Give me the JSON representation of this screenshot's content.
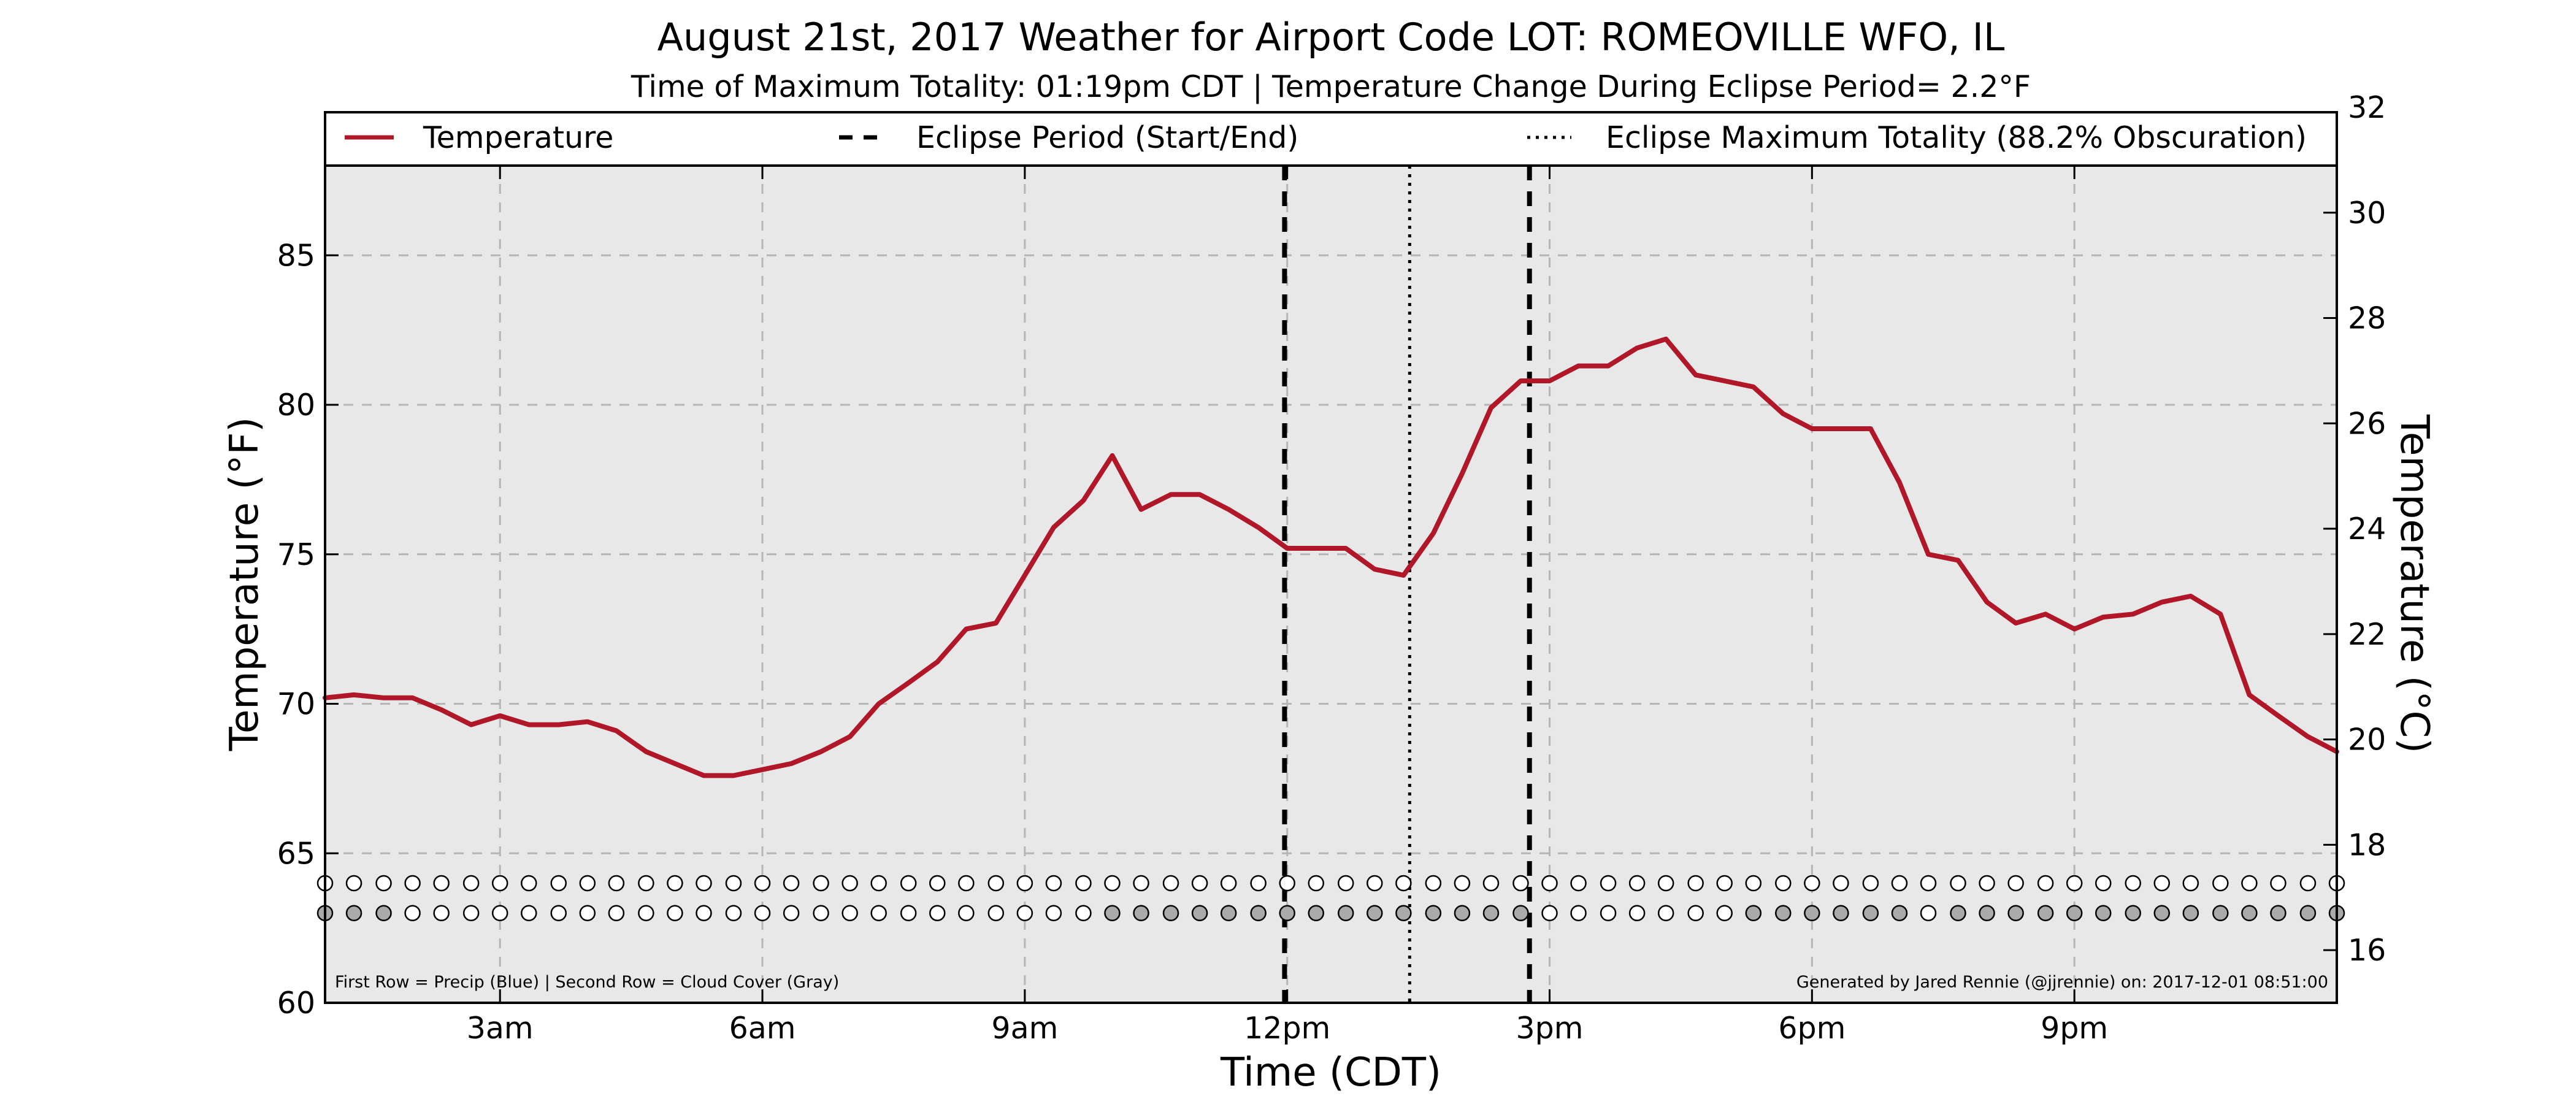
{
  "chart_data": {
    "type": "line",
    "title": "August 21st, 2017 Weather for Airport Code LOT: ROMEOVILLE WFO, IL",
    "subtitle": "Time of Maximum Totality: 01:19pm CDT | Temperature Change During Eclipse Period= 2.2°F",
    "xlabel": "Time (CDT)",
    "ylabel": "Temperature (°F)",
    "y2label": "Temperature (°C)",
    "xlim": [
      1.0,
      24.0
    ],
    "ylim": [
      60,
      88
    ],
    "y2lim": [
      15,
      32
    ],
    "x_ticks": [
      {
        "x": 3,
        "label": "3am"
      },
      {
        "x": 6,
        "label": "6am"
      },
      {
        "x": 9,
        "label": "9am"
      },
      {
        "x": 12,
        "label": "12pm"
      },
      {
        "x": 15,
        "label": "3pm"
      },
      {
        "x": 18,
        "label": "6pm"
      },
      {
        "x": 21,
        "label": "9pm"
      }
    ],
    "y_ticks": [
      {
        "y": 60,
        "label": "60"
      },
      {
        "y": 65,
        "label": "65"
      },
      {
        "y": 70,
        "label": "70"
      },
      {
        "y": 75,
        "label": "75"
      },
      {
        "y": 80,
        "label": "80"
      },
      {
        "y": 85,
        "label": "85"
      }
    ],
    "y2_ticks": [
      {
        "y": 16,
        "label": "16"
      },
      {
        "y": 18,
        "label": "18"
      },
      {
        "y": 20,
        "label": "20"
      },
      {
        "y": 22,
        "label": "22"
      },
      {
        "y": 24,
        "label": "24"
      },
      {
        "y": 26,
        "label": "26"
      },
      {
        "y": 28,
        "label": "28"
      },
      {
        "y": 30,
        "label": "30"
      },
      {
        "y": 32,
        "label": "32"
      }
    ],
    "grid": true,
    "legend_position": "top",
    "legend": [
      {
        "label": "Temperature",
        "style": "solid"
      },
      {
        "label": "Eclipse Period (Start/End)",
        "style": "dashed"
      },
      {
        "label": "Eclipse Maximum Totality (88.2% Obscuration)",
        "style": "dotted"
      }
    ],
    "series": [
      {
        "name": "Temperature",
        "x": [
          1.0,
          1.33,
          1.67,
          2.0,
          2.33,
          2.67,
          3.0,
          3.33,
          3.67,
          4.0,
          4.33,
          4.67,
          5.0,
          5.33,
          5.67,
          6.0,
          6.33,
          6.67,
          7.0,
          7.33,
          7.67,
          8.0,
          8.33,
          8.67,
          9.0,
          9.33,
          9.67,
          10.0,
          10.33,
          10.67,
          11.0,
          11.33,
          11.67,
          12.0,
          12.33,
          12.67,
          13.0,
          13.33,
          13.67,
          14.0,
          14.33,
          14.67,
          15.0,
          15.33,
          15.67,
          16.0,
          16.33,
          16.67,
          17.0,
          17.33,
          17.67,
          18.0,
          18.33,
          18.67,
          19.0,
          19.33,
          19.67,
          20.0,
          20.33,
          20.67,
          21.0,
          21.33,
          21.67,
          22.0,
          22.33,
          22.67,
          23.0,
          23.33,
          23.67,
          24.0
        ],
        "values": [
          70.2,
          70.3,
          70.2,
          70.2,
          69.8,
          69.3,
          69.6,
          69.3,
          69.3,
          69.4,
          69.1,
          68.4,
          68.0,
          67.6,
          67.6,
          67.8,
          68.0,
          68.4,
          68.9,
          70.0,
          70.7,
          71.4,
          72.5,
          72.7,
          74.3,
          75.9,
          76.8,
          78.3,
          76.5,
          77.0,
          77.0,
          76.5,
          75.9,
          75.2,
          75.2,
          75.2,
          74.5,
          74.3,
          75.7,
          77.7,
          79.9,
          80.8,
          80.8,
          81.3,
          81.3,
          81.9,
          82.2,
          81.0,
          80.8,
          80.6,
          79.7,
          79.2,
          79.2,
          79.2,
          77.4,
          75.0,
          74.8,
          73.4,
          72.7,
          73.0,
          72.5,
          72.9,
          73.0,
          73.4,
          73.6,
          73.0,
          70.3,
          69.6,
          68.9,
          68.4
        ]
      }
    ],
    "colors": {
      "temperature_line": "#b0182a",
      "plot_background": "#e8e8e8",
      "grid": "#b5b5b5",
      "precip_dot": "#ffffff",
      "cloud_dot": "#aaaaaa",
      "clear_dot": "#ffffff"
    },
    "eclipse_start_x": 11.97,
    "eclipse_end_x": 14.77,
    "max_totality_x": 13.4,
    "dot_rows": {
      "row1_y": 64.0,
      "row2_y": 63.0,
      "x": [
        1.0,
        1.33,
        1.67,
        2.0,
        2.33,
        2.67,
        3.0,
        3.33,
        3.67,
        4.0,
        4.33,
        4.67,
        5.0,
        5.33,
        5.67,
        6.0,
        6.33,
        6.67,
        7.0,
        7.33,
        7.67,
        8.0,
        8.33,
        8.67,
        9.0,
        9.33,
        9.67,
        10.0,
        10.33,
        10.67,
        11.0,
        11.33,
        11.67,
        12.0,
        12.33,
        12.67,
        13.0,
        13.33,
        13.67,
        14.0,
        14.33,
        14.67,
        15.0,
        15.33,
        15.67,
        16.0,
        16.33,
        16.67,
        17.0,
        17.33,
        17.67,
        18.0,
        18.33,
        18.67,
        19.0,
        19.33,
        19.67,
        20.0,
        20.33,
        20.67,
        21.0,
        21.33,
        21.67,
        22.0,
        22.33,
        22.67,
        23.0,
        23.33,
        23.67,
        24.0
      ],
      "precip": [
        0,
        0,
        0,
        0,
        0,
        0,
        0,
        0,
        0,
        0,
        0,
        0,
        0,
        0,
        0,
        0,
        0,
        0,
        0,
        0,
        0,
        0,
        0,
        0,
        0,
        0,
        0,
        0,
        0,
        0,
        0,
        0,
        0,
        0,
        0,
        0,
        0,
        0,
        0,
        0,
        0,
        0,
        0,
        0,
        0,
        0,
        0,
        0,
        0,
        0,
        0,
        0,
        0,
        0,
        0,
        0,
        0,
        0,
        0,
        0,
        0,
        0,
        0,
        0,
        0,
        0,
        0,
        0,
        0,
        0
      ],
      "cloud": [
        1,
        1,
        1,
        0,
        0,
        0,
        0,
        0,
        0,
        0,
        0,
        0,
        0,
        0,
        0,
        0,
        0,
        0,
        0,
        0,
        0,
        0,
        0,
        0,
        0,
        0,
        0,
        1,
        1,
        1,
        1,
        1,
        1,
        1,
        1,
        1,
        1,
        1,
        1,
        1,
        1,
        1,
        0,
        0,
        0,
        0,
        0,
        0,
        0,
        1,
        1,
        1,
        1,
        1,
        1,
        0,
        1,
        1,
        1,
        1,
        1,
        1,
        1,
        1,
        1,
        1,
        1,
        1,
        1,
        1
      ]
    },
    "footnote_left": "First Row = Precip (Blue) | Second Row = Cloud Cover (Gray)",
    "footnote_right": "Generated by Jared Rennie (@jjrennie) on: 2017-12-01 08:51:00"
  }
}
